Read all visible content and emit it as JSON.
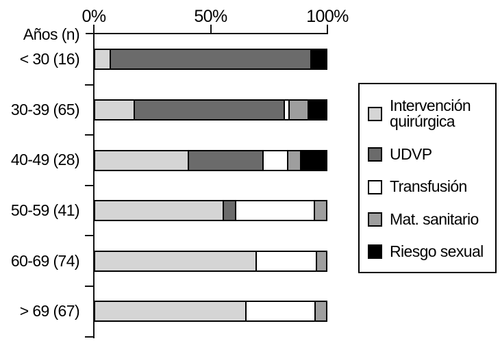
{
  "chart_data": {
    "type": "bar",
    "orientation": "horizontal",
    "stacked": true,
    "title": "",
    "xlabel": "",
    "ylabel": "Años (n)",
    "unit": "percent",
    "xlim": [
      0,
      100
    ],
    "x_tick_labels": [
      "0%",
      "50%",
      "100%"
    ],
    "x_tick_values": [
      0,
      50,
      100
    ],
    "grid": false,
    "legend_position": "right",
    "categories": [
      "< 30 (16)",
      "30-39 (65)",
      "40-49 (28)",
      "50-59 (41)",
      "60-69 (74)",
      "> 69 (67)"
    ],
    "category_counts": [
      16,
      65,
      28,
      41,
      74,
      67
    ],
    "series": [
      {
        "name": "Intervención quirúrgica",
        "color": "#d5d5d5",
        "values": [
          6.25,
          16.9,
          41.0,
          56.1,
          70.3,
          65.7
        ]
      },
      {
        "name": "UDVP",
        "color": "#6b6b6b",
        "values": [
          87.5,
          66.2,
          32.5,
          4.9,
          0,
          0
        ]
      },
      {
        "name": "Transfusión",
        "color": "#ffffff",
        "values": [
          0,
          1.5,
          10.5,
          34.1,
          25.7,
          29.9
        ]
      },
      {
        "name": "Mat. sanitario",
        "color": "#9e9e9e",
        "values": [
          0,
          7.7,
          5.0,
          4.9,
          4.0,
          4.4
        ]
      },
      {
        "name": "Riesgo sexual",
        "color": "#000000",
        "values": [
          6.25,
          7.7,
          11.0,
          0,
          0,
          0
        ]
      }
    ]
  }
}
